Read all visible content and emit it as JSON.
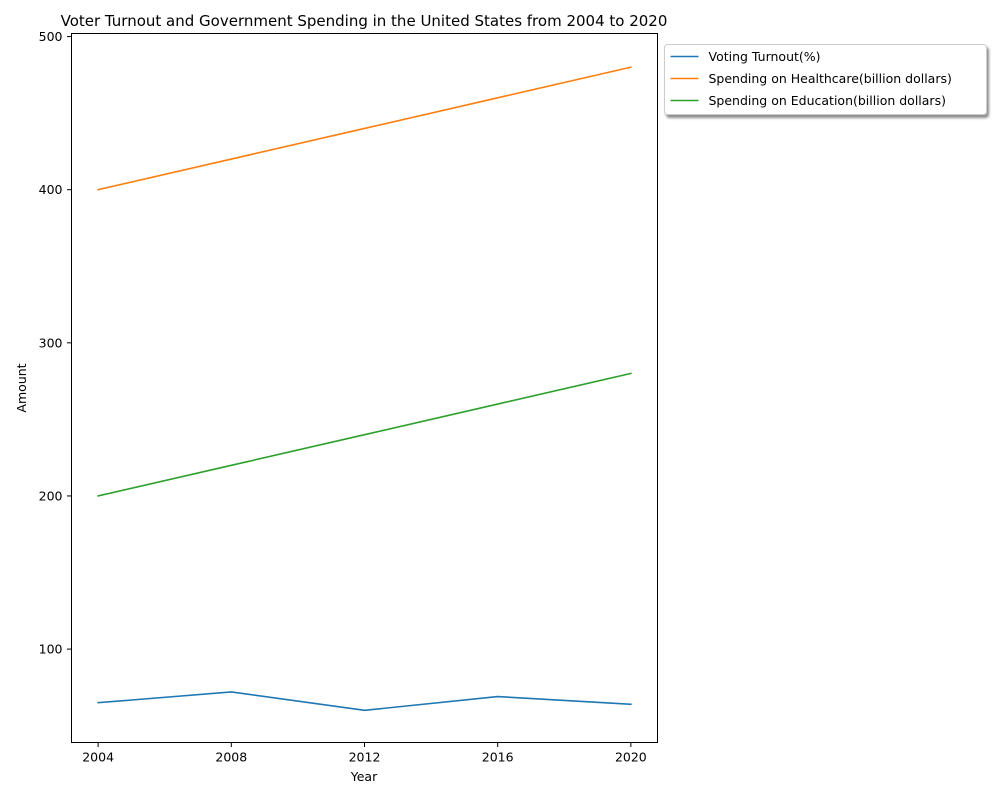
{
  "chart_data": {
    "type": "line",
    "title": "Voter Turnout and Government Spending in the United States from 2004 to 2020",
    "xlabel": "Year",
    "ylabel": "Amount",
    "x": [
      2004,
      2008,
      2012,
      2016,
      2020
    ],
    "x_tick_labels": [
      "2004",
      "2008",
      "2012",
      "2016",
      "2020"
    ],
    "y_ticks": [
      100,
      200,
      300,
      400,
      500
    ],
    "y_tick_labels": [
      "100",
      "200",
      "300",
      "400",
      "500"
    ],
    "xlim": [
      2003.2,
      2020.8
    ],
    "ylim": [
      39,
      502
    ],
    "grid": false,
    "legend_position": "outside upper-right",
    "series": [
      {
        "name": "Voting Turnout(%)",
        "color": "#1f77b4",
        "values": [
          65,
          72,
          60,
          69,
          64
        ]
      },
      {
        "name": "Spending on Healthcare(billion dollars)",
        "color": "#ff7f0e",
        "values": [
          400,
          420,
          440,
          460,
          480
        ]
      },
      {
        "name": "Spending on Education(billion dollars)",
        "color": "#2ca02c",
        "values": [
          200,
          220,
          240,
          260,
          280
        ]
      }
    ]
  }
}
